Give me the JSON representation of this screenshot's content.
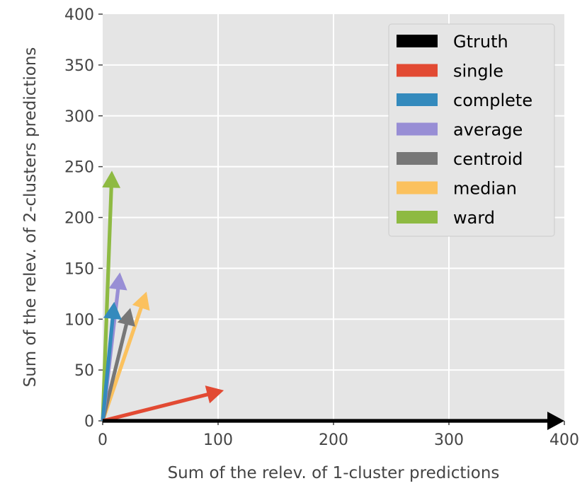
{
  "chart_data": {
    "type": "quiver",
    "xlabel": "Sum of the relev. of 1-cluster predictions",
    "ylabel": "Sum of the relev. of 2-clusters predictions",
    "xlim": [
      0,
      400
    ],
    "ylim": [
      0,
      400
    ],
    "xticks": [
      "0",
      "100",
      "200",
      "300",
      "400"
    ],
    "yticks": [
      "0",
      "50",
      "100",
      "150",
      "200",
      "250",
      "300",
      "350",
      "400"
    ],
    "grid": true,
    "background": "#e5e5e5",
    "legend_position": "upper-right",
    "series": [
      {
        "name": "Gtruth",
        "color": "#000000",
        "x": 0,
        "y": 0,
        "dx": 400,
        "dy": 0
      },
      {
        "name": "single",
        "color": "#e24a33",
        "x": 0,
        "y": 0,
        "dx": 105,
        "dy": 30
      },
      {
        "name": "complete",
        "color": "#348abd",
        "x": 0,
        "y": 0,
        "dx": 10,
        "dy": 117
      },
      {
        "name": "average",
        "color": "#988ed5",
        "x": 0,
        "y": 0,
        "dx": 15,
        "dy": 146
      },
      {
        "name": "centroid",
        "color": "#777777",
        "x": 0,
        "y": 0,
        "dx": 24,
        "dy": 111
      },
      {
        "name": "median",
        "color": "#fbc15e",
        "x": 0,
        "y": 0,
        "dx": 38,
        "dy": 127
      },
      {
        "name": "ward",
        "color": "#8eba42",
        "x": 0,
        "y": 0,
        "dx": 8,
        "dy": 246
      }
    ]
  }
}
